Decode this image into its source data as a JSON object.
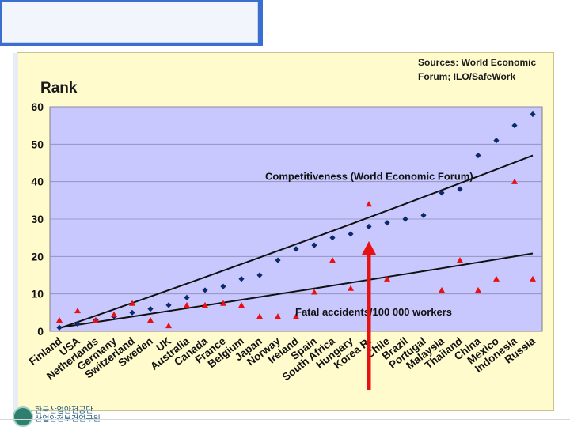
{
  "slide": {
    "logo_line1": "한국산업안전공단",
    "logo_line2": "산업안전보건연구원"
  },
  "colors": {
    "top_bar": "#3a6fd0",
    "panel_bg": "#fffbcc",
    "plot_bg": "#c8c8ff",
    "competitiveness": "#0b2a6a",
    "fatal": "#e81010",
    "arrow": "#e81010"
  },
  "chart_data": {
    "type": "scatter",
    "title": "",
    "ylabel": "Rank",
    "xlabel": "",
    "ylim": [
      0,
      60
    ],
    "yticks": [
      0,
      10,
      20,
      30,
      40,
      50,
      60
    ],
    "grid": "horizontal",
    "source_note": [
      "Sources: World Economic",
      "Forum; ILO/SafeWork"
    ],
    "categories": [
      "Finland",
      "USA",
      "Netherlands",
      "Germany",
      "Switzerland",
      "Sweden",
      "UK",
      "Australia",
      "Canada",
      "France",
      "Belgium",
      "Japan",
      "Norway",
      "Ireland",
      "Spain",
      "South Africa",
      "Hungary",
      "Korea R.",
      "Chile",
      "Brazil",
      "Portugal",
      "Malaysia",
      "Thailand",
      "China",
      "Mexico",
      "Indonesia",
      "Russia"
    ],
    "series": [
      {
        "name": "Competitiveness (World Economic Forum)",
        "marker": "diamond",
        "values": [
          1,
          2,
          3,
          4,
          5,
          6,
          7,
          9,
          11,
          12,
          14,
          15,
          19,
          22,
          23,
          25,
          26,
          28,
          29,
          30,
          31,
          37,
          38,
          47,
          51,
          55,
          58
        ]
      },
      {
        "name": "Fatal accidents/100 000 workers",
        "marker": "triangle",
        "values": [
          3,
          5.5,
          3,
          4.5,
          7.5,
          3,
          1.5,
          7,
          7,
          7.5,
          7,
          4,
          4,
          4,
          10.5,
          19,
          11.5,
          34,
          14,
          null,
          null,
          11,
          19,
          11,
          14,
          40,
          14
        ]
      }
    ],
    "trendlines": [
      {
        "series": "Competitiveness (World Economic Forum)",
        "start": 0.8,
        "end": 47
      },
      {
        "series": "Fatal accidents/100 000 workers",
        "start": 1,
        "end": 20.8
      }
    ],
    "annotation": {
      "type": "arrow",
      "category": "Korea R.",
      "direction": "up"
    }
  }
}
